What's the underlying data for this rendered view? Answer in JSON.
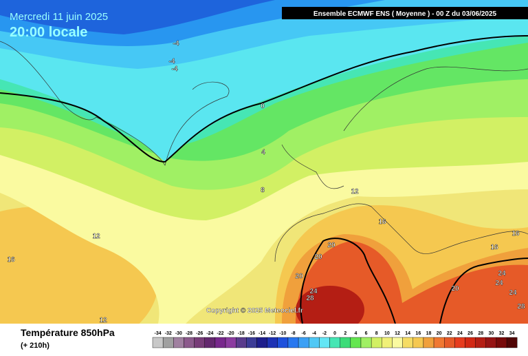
{
  "header": {
    "date": "Mercredi 11 juin 2025",
    "time": "20:00 locale",
    "model": "Ensemble ECMWF ENS  ( Moyenne )  -  00 Z du 03/06/2025"
  },
  "copyright": "Copyright © 2025 Meteociel.fr",
  "footer": {
    "title": "Température 850hPa",
    "lead": "(+ 210h)"
  },
  "contour_labels": [
    "-4",
    "-4",
    "-4",
    "0",
    "4",
    "8",
    "12",
    "12",
    "16",
    "16",
    "16",
    "20",
    "20",
    "20",
    "24",
    "28",
    "16",
    "20",
    "24",
    "24",
    "24",
    "28",
    "12"
  ],
  "legend": {
    "values": [
      -34,
      -32,
      -30,
      -28,
      -26,
      -24,
      -22,
      -20,
      -18,
      -16,
      -14,
      -12,
      -10,
      -8,
      -6,
      -4,
      -2,
      0,
      2,
      4,
      6,
      8,
      10,
      12,
      14,
      16,
      18,
      20,
      22,
      24,
      26,
      28,
      30,
      32,
      34
    ],
    "colors": [
      "#c8c8c8",
      "#a0a0a0",
      "#a080a0",
      "#8c5a8c",
      "#783c78",
      "#64286e",
      "#78288c",
      "#8c3ca0",
      "#5a3c8c",
      "#3c3c96",
      "#1e1e8c",
      "#1e32b4",
      "#1e50dc",
      "#2878f0",
      "#3ca0f5",
      "#50c8f5",
      "#64e6f5",
      "#46e6b4",
      "#3cdc78",
      "#64e650",
      "#a0f064",
      "#d2f064",
      "#f0f078",
      "#fafaa0",
      "#f5dc64",
      "#f5c850",
      "#f0a03c",
      "#f07832",
      "#e65a28",
      "#e63c1e",
      "#d22814",
      "#b41e14",
      "#961414",
      "#780a0a",
      "#500505"
    ]
  }
}
